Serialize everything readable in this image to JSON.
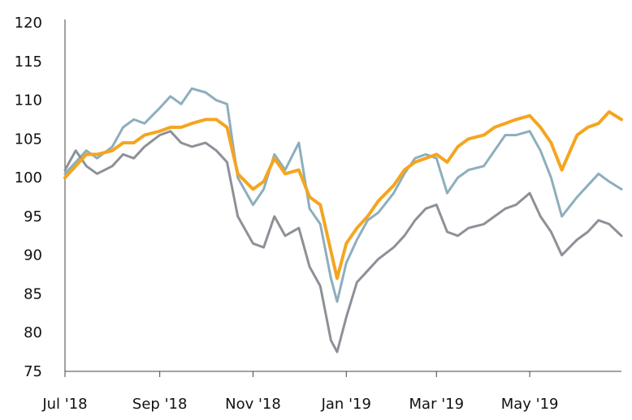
{
  "chart_data": {
    "type": "line",
    "title": "",
    "xlabel": "",
    "ylabel": "",
    "ylim": [
      75,
      120
    ],
    "yticks": [
      75,
      80,
      85,
      90,
      95,
      100,
      105,
      110,
      115,
      120
    ],
    "xlim": [
      "2018-07-01",
      "2019-06-30"
    ],
    "xticks": [
      {
        "label": "Jul '18",
        "date": "2018-07-01"
      },
      {
        "label": "Sep '18",
        "date": "2018-09-01"
      },
      {
        "label": "Nov '18",
        "date": "2018-11-01"
      },
      {
        "label": "Jan '19",
        "date": "2019-01-01"
      },
      {
        "label": "Mar '19",
        "date": "2019-03-01"
      },
      {
        "label": "May '19",
        "date": "2019-05-01"
      }
    ],
    "grid": false,
    "legend": "none",
    "series": [
      {
        "color": "#8daebd",
        "points": [
          [
            "2018-07-01",
            100.5
          ],
          [
            "2018-07-08",
            102.0
          ],
          [
            "2018-07-15",
            103.5
          ],
          [
            "2018-07-22",
            102.5
          ],
          [
            "2018-08-01",
            104.0
          ],
          [
            "2018-08-08",
            106.5
          ],
          [
            "2018-08-15",
            107.5
          ],
          [
            "2018-08-22",
            107.0
          ],
          [
            "2018-09-01",
            109.0
          ],
          [
            "2018-09-08",
            110.5
          ],
          [
            "2018-09-15",
            109.5
          ],
          [
            "2018-09-22",
            111.5
          ],
          [
            "2018-10-01",
            111.0
          ],
          [
            "2018-10-08",
            110.0
          ],
          [
            "2018-10-15",
            109.5
          ],
          [
            "2018-10-22",
            100.0
          ],
          [
            "2018-11-01",
            96.5
          ],
          [
            "2018-11-08",
            98.5
          ],
          [
            "2018-11-15",
            103.0
          ],
          [
            "2018-11-22",
            101.0
          ],
          [
            "2018-12-01",
            104.5
          ],
          [
            "2018-12-08",
            96.0
          ],
          [
            "2018-12-15",
            94.0
          ],
          [
            "2018-12-22",
            87.0
          ],
          [
            "2018-12-26",
            84.0
          ],
          [
            "2019-01-01",
            89.0
          ],
          [
            "2019-01-08",
            92.0
          ],
          [
            "2019-01-15",
            94.5
          ],
          [
            "2019-01-22",
            95.5
          ],
          [
            "2019-02-01",
            98.0
          ],
          [
            "2019-02-08",
            100.5
          ],
          [
            "2019-02-15",
            102.5
          ],
          [
            "2019-02-22",
            103.0
          ],
          [
            "2019-03-01",
            102.5
          ],
          [
            "2019-03-08",
            98.0
          ],
          [
            "2019-03-15",
            100.0
          ],
          [
            "2019-03-22",
            101.0
          ],
          [
            "2019-04-01",
            101.5
          ],
          [
            "2019-04-08",
            103.5
          ],
          [
            "2019-04-15",
            105.5
          ],
          [
            "2019-04-22",
            105.5
          ],
          [
            "2019-05-01",
            106.0
          ],
          [
            "2019-05-08",
            103.5
          ],
          [
            "2019-05-15",
            100.0
          ],
          [
            "2019-05-22",
            95.0
          ],
          [
            "2019-06-01",
            97.5
          ],
          [
            "2019-06-08",
            99.0
          ],
          [
            "2019-06-15",
            100.5
          ],
          [
            "2019-06-22",
            99.5
          ],
          [
            "2019-06-30",
            98.5
          ]
        ]
      },
      {
        "color": "#8d9197",
        "points": [
          [
            "2018-07-01",
            101.0
          ],
          [
            "2018-07-08",
            103.5
          ],
          [
            "2018-07-15",
            101.5
          ],
          [
            "2018-07-22",
            100.5
          ],
          [
            "2018-08-01",
            101.5
          ],
          [
            "2018-08-08",
            103.0
          ],
          [
            "2018-08-15",
            102.5
          ],
          [
            "2018-08-22",
            104.0
          ],
          [
            "2018-09-01",
            105.5
          ],
          [
            "2018-09-08",
            106.0
          ],
          [
            "2018-09-15",
            104.5
          ],
          [
            "2018-09-22",
            104.0
          ],
          [
            "2018-10-01",
            104.5
          ],
          [
            "2018-10-08",
            103.5
          ],
          [
            "2018-10-15",
            102.0
          ],
          [
            "2018-10-22",
            95.0
          ],
          [
            "2018-11-01",
            91.5
          ],
          [
            "2018-11-08",
            91.0
          ],
          [
            "2018-11-15",
            95.0
          ],
          [
            "2018-11-22",
            92.5
          ],
          [
            "2018-12-01",
            93.5
          ],
          [
            "2018-12-08",
            88.5
          ],
          [
            "2018-12-15",
            86.0
          ],
          [
            "2018-12-22",
            79.0
          ],
          [
            "2018-12-26",
            77.5
          ],
          [
            "2019-01-01",
            82.0
          ],
          [
            "2019-01-08",
            86.5
          ],
          [
            "2019-01-15",
            88.0
          ],
          [
            "2019-01-22",
            89.5
          ],
          [
            "2019-02-01",
            91.0
          ],
          [
            "2019-02-08",
            92.5
          ],
          [
            "2019-02-15",
            94.5
          ],
          [
            "2019-02-22",
            96.0
          ],
          [
            "2019-03-01",
            96.5
          ],
          [
            "2019-03-08",
            93.0
          ],
          [
            "2019-03-15",
            92.5
          ],
          [
            "2019-03-22",
            93.5
          ],
          [
            "2019-04-01",
            94.0
          ],
          [
            "2019-04-08",
            95.0
          ],
          [
            "2019-04-15",
            96.0
          ],
          [
            "2019-04-22",
            96.5
          ],
          [
            "2019-05-01",
            98.0
          ],
          [
            "2019-05-08",
            95.0
          ],
          [
            "2019-05-15",
            93.0
          ],
          [
            "2019-05-22",
            90.0
          ],
          [
            "2019-06-01",
            92.0
          ],
          [
            "2019-06-08",
            93.0
          ],
          [
            "2019-06-15",
            94.5
          ],
          [
            "2019-06-22",
            94.0
          ],
          [
            "2019-06-30",
            92.5
          ]
        ]
      },
      {
        "color": "#f4a520",
        "points": [
          [
            "2018-07-01",
            100.0
          ],
          [
            "2018-07-08",
            101.5
          ],
          [
            "2018-07-15",
            103.0
          ],
          [
            "2018-07-22",
            103.0
          ],
          [
            "2018-08-01",
            103.5
          ],
          [
            "2018-08-08",
            104.5
          ],
          [
            "2018-08-15",
            104.5
          ],
          [
            "2018-08-22",
            105.5
          ],
          [
            "2018-09-01",
            106.0
          ],
          [
            "2018-09-08",
            106.5
          ],
          [
            "2018-09-15",
            106.5
          ],
          [
            "2018-09-22",
            107.0
          ],
          [
            "2018-10-01",
            107.5
          ],
          [
            "2018-10-08",
            107.5
          ],
          [
            "2018-10-15",
            106.5
          ],
          [
            "2018-10-22",
            100.5
          ],
          [
            "2018-11-01",
            98.5
          ],
          [
            "2018-11-08",
            99.5
          ],
          [
            "2018-11-15",
            102.5
          ],
          [
            "2018-11-22",
            100.5
          ],
          [
            "2018-12-01",
            101.0
          ],
          [
            "2018-12-08",
            97.5
          ],
          [
            "2018-12-15",
            96.5
          ],
          [
            "2018-12-22",
            90.5
          ],
          [
            "2018-12-26",
            87.0
          ],
          [
            "2019-01-01",
            91.5
          ],
          [
            "2019-01-08",
            93.5
          ],
          [
            "2019-01-15",
            95.0
          ],
          [
            "2019-01-22",
            97.0
          ],
          [
            "2019-02-01",
            99.0
          ],
          [
            "2019-02-08",
            101.0
          ],
          [
            "2019-02-15",
            102.0
          ],
          [
            "2019-02-22",
            102.5
          ],
          [
            "2019-03-01",
            103.0
          ],
          [
            "2019-03-08",
            102.0
          ],
          [
            "2019-03-15",
            104.0
          ],
          [
            "2019-03-22",
            105.0
          ],
          [
            "2019-04-01",
            105.5
          ],
          [
            "2019-04-08",
            106.5
          ],
          [
            "2019-04-15",
            107.0
          ],
          [
            "2019-04-22",
            107.5
          ],
          [
            "2019-05-01",
            108.0
          ],
          [
            "2019-05-08",
            106.5
          ],
          [
            "2019-05-15",
            104.5
          ],
          [
            "2019-05-22",
            101.0
          ],
          [
            "2019-06-01",
            105.5
          ],
          [
            "2019-06-08",
            106.5
          ],
          [
            "2019-06-15",
            107.0
          ],
          [
            "2019-06-22",
            108.5
          ],
          [
            "2019-06-30",
            107.5
          ]
        ]
      }
    ]
  }
}
